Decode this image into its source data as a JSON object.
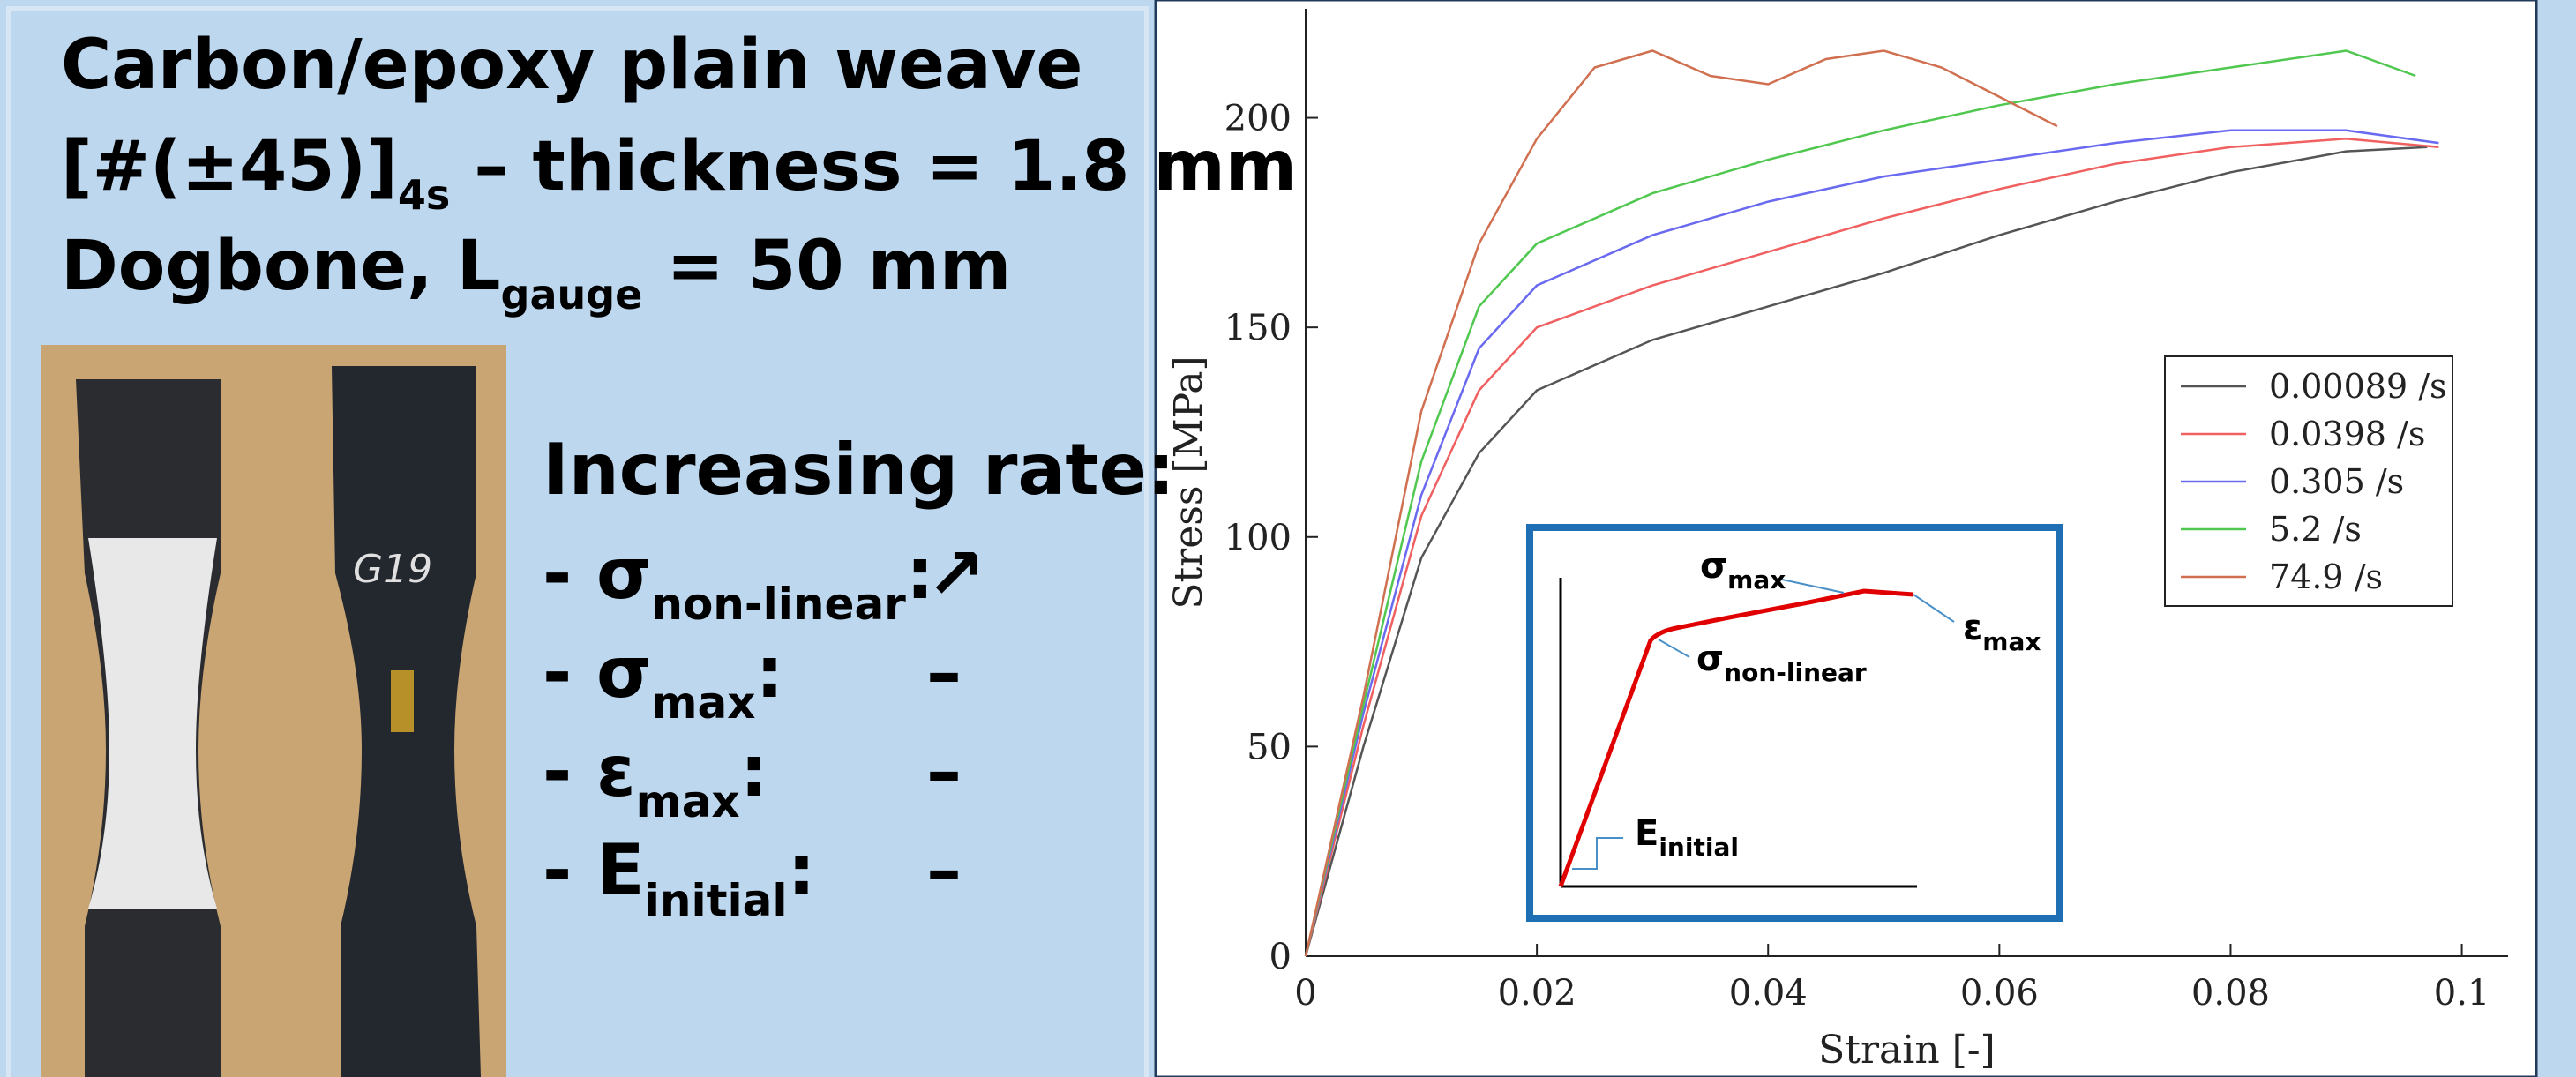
{
  "slide": {
    "title": {
      "line1": "Carbon/epoxy plain weave",
      "line2_main": "[#(±45)]",
      "line2_sub": "4s",
      "line2_rest": " – thickness = 1.8 mm",
      "line3_main": "Dogbone, L",
      "line3_sub": "gauge",
      "line3_rest": " = 50 mm"
    },
    "photo_label": "G19",
    "rates": {
      "heading": "Increasing rate:",
      "items": [
        {
          "symbol": "- σ",
          "sub": "non-linear",
          "colon": ":",
          "trend": "↗"
        },
        {
          "symbol": "- σ",
          "sub": "max",
          "colon": ":",
          "trend": "–"
        },
        {
          "symbol": "- ε",
          "sub": "max",
          "colon": ":",
          "trend": "–"
        },
        {
          "symbol": "- E",
          "sub": "initial",
          "colon": ":",
          "trend": "–"
        }
      ]
    },
    "inset": {
      "sigma_max": {
        "main": "σ",
        "sub": "max"
      },
      "eps_max": {
        "main": "ε",
        "sub": "max"
      },
      "sigma_nl": {
        "main": "σ",
        "sub": "non-linear"
      },
      "e_initial": {
        "main": "E",
        "sub": "initial"
      }
    }
  },
  "chart_data": {
    "type": "line",
    "xlabel": "Strain [-]",
    "ylabel": "Stress [MPa]",
    "xlim": [
      0,
      0.104
    ],
    "ylim": [
      0,
      226
    ],
    "xticks": [
      0,
      0.02,
      0.04,
      0.06,
      0.08,
      0.1
    ],
    "yticks": [
      0,
      50,
      100,
      150,
      200
    ],
    "legend": "right",
    "series": [
      {
        "name": "0.00089 /s",
        "color": "#555555",
        "x": [
          0,
          0.005,
          0.01,
          0.015,
          0.02,
          0.03,
          0.04,
          0.05,
          0.06,
          0.07,
          0.08,
          0.09,
          0.097
        ],
        "values": [
          0,
          50,
          95,
          120,
          135,
          147,
          155,
          163,
          172,
          180,
          187,
          192,
          193
        ]
      },
      {
        "name": "0.0398 /s",
        "color": "#f06060",
        "x": [
          0,
          0.005,
          0.01,
          0.015,
          0.02,
          0.03,
          0.04,
          0.05,
          0.06,
          0.07,
          0.08,
          0.09,
          0.098
        ],
        "values": [
          0,
          55,
          105,
          135,
          150,
          160,
          168,
          176,
          183,
          189,
          193,
          195,
          193
        ]
      },
      {
        "name": "0.305 /s",
        "color": "#6a6af0",
        "x": [
          0,
          0.005,
          0.01,
          0.015,
          0.02,
          0.03,
          0.04,
          0.05,
          0.06,
          0.07,
          0.08,
          0.09,
          0.098
        ],
        "values": [
          0,
          58,
          110,
          145,
          160,
          172,
          180,
          186,
          190,
          194,
          197,
          197,
          194
        ]
      },
      {
        "name": "5.2 /s",
        "color": "#50c850",
        "x": [
          0,
          0.005,
          0.01,
          0.015,
          0.02,
          0.03,
          0.04,
          0.05,
          0.06,
          0.07,
          0.08,
          0.09,
          0.096
        ],
        "values": [
          0,
          60,
          118,
          155,
          170,
          182,
          190,
          197,
          203,
          208,
          212,
          216,
          210
        ]
      },
      {
        "name": "74.9 /s",
        "color": "#d07050",
        "x": [
          0,
          0.005,
          0.01,
          0.015,
          0.02,
          0.025,
          0.03,
          0.035,
          0.04,
          0.045,
          0.05,
          0.055,
          0.06,
          0.065
        ],
        "values": [
          0,
          62,
          130,
          170,
          195,
          212,
          216,
          210,
          208,
          214,
          216,
          212,
          205,
          198
        ]
      }
    ]
  }
}
